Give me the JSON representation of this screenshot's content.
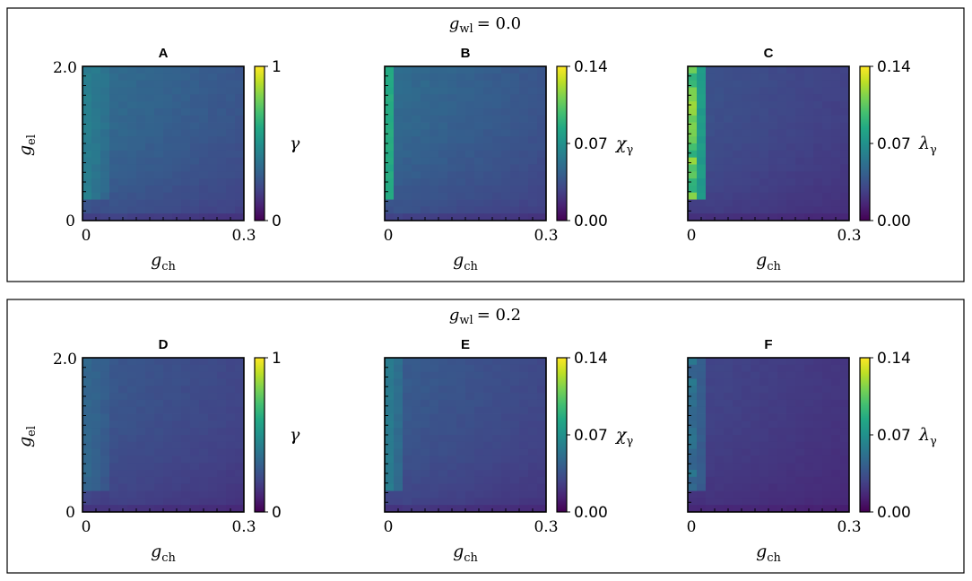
{
  "colors": {
    "viridis": [
      "#440154",
      "#482475",
      "#414487",
      "#355f8d",
      "#2a788e",
      "#21918c",
      "#22a884",
      "#44bf70",
      "#7ad151",
      "#bddf26",
      "#fde725"
    ],
    "frame": "#000000",
    "background": "#ffffff"
  },
  "chart_data": [
    {
      "group_title_var": "g",
      "group_title_sub": "wl",
      "group_title_value": "= 0.0",
      "panels": [
        {
          "letter": "A",
          "type": "heatmap",
          "metric": "gamma",
          "xlabel_var": "g",
          "xlabel_sub": "ch",
          "ylabel_var": "g",
          "ylabel_sub": "el",
          "xlim": [
            0,
            0.3
          ],
          "ylim": [
            0,
            2.0
          ],
          "xticks": [
            "0",
            "0.3"
          ],
          "yticks": [
            "0",
            "2.0"
          ],
          "colorbar": {
            "label": "γ",
            "label_sub": "",
            "min": 0,
            "max": 1,
            "ticks": [
              "0",
              "1"
            ]
          },
          "base_value": 0.32,
          "hot_value": 0.42,
          "hot_width_cols": 3
        },
        {
          "letter": "B",
          "type": "heatmap",
          "metric": "chi",
          "xlabel_var": "g",
          "xlabel_sub": "ch",
          "ylabel_var": "",
          "ylabel_sub": "",
          "xlim": [
            0,
            0.3
          ],
          "ylim": [
            0,
            2.0
          ],
          "xticks": [
            "0",
            "0.3"
          ],
          "yticks": [],
          "colorbar": {
            "label": "χ",
            "label_sub": "γ",
            "min": 0.0,
            "max": 0.14,
            "ticks": [
              "0.00",
              "0.07",
              "0.14"
            ]
          },
          "base_value": 0.044,
          "hot_value": 0.085,
          "hot_width_cols": 1
        },
        {
          "letter": "C",
          "type": "heatmap",
          "metric": "lambda",
          "xlabel_var": "g",
          "xlabel_sub": "ch",
          "ylabel_var": "",
          "ylabel_sub": "",
          "xlim": [
            0,
            0.3
          ],
          "ylim": [
            0,
            2.0
          ],
          "xticks": [
            "0",
            "0.3"
          ],
          "yticks": [],
          "colorbar": {
            "label": "λ",
            "label_sub": "γ",
            "min": 0.0,
            "max": 0.14,
            "ticks": [
              "0.00",
              "0.07",
              "0.14"
            ]
          },
          "base_value": 0.032,
          "hot_value": 0.105,
          "hot_width_cols": 2
        }
      ]
    },
    {
      "group_title_var": "g",
      "group_title_sub": "wl",
      "group_title_value": "= 0.2",
      "panels": [
        {
          "letter": "D",
          "type": "heatmap",
          "metric": "gamma",
          "xlabel_var": "g",
          "xlabel_sub": "ch",
          "ylabel_var": "g",
          "ylabel_sub": "el",
          "xlim": [
            0,
            0.3
          ],
          "ylim": [
            0,
            2.0
          ],
          "xticks": [
            "0",
            "0.3"
          ],
          "yticks": [
            "0",
            "2.0"
          ],
          "colorbar": {
            "label": "γ",
            "label_sub": "",
            "min": 0,
            "max": 1,
            "ticks": [
              "0",
              "1"
            ]
          },
          "base_value": 0.25,
          "hot_value": 0.33,
          "hot_width_cols": 3
        },
        {
          "letter": "E",
          "type": "heatmap",
          "metric": "chi",
          "xlabel_var": "g",
          "xlabel_sub": "ch",
          "ylabel_var": "",
          "ylabel_sub": "",
          "xlim": [
            0,
            0.3
          ],
          "ylim": [
            0,
            2.0
          ],
          "xticks": [
            "0",
            "0.3"
          ],
          "yticks": [],
          "colorbar": {
            "label": "χ",
            "label_sub": "γ",
            "min": 0.0,
            "max": 0.14,
            "ticks": [
              "0.00",
              "0.07",
              "0.14"
            ]
          },
          "base_value": 0.036,
          "hot_value": 0.058,
          "hot_width_cols": 2
        },
        {
          "letter": "F",
          "type": "heatmap",
          "metric": "lambda",
          "xlabel_var": "g",
          "xlabel_sub": "ch",
          "ylabel_var": "",
          "ylabel_sub": "",
          "xlim": [
            0,
            0.3
          ],
          "ylim": [
            0,
            2.0
          ],
          "xticks": [
            "0",
            "0.3"
          ],
          "yticks": [],
          "colorbar": {
            "label": "λ",
            "label_sub": "γ",
            "min": 0.0,
            "max": 0.14,
            "ticks": [
              "0.00",
              "0.07",
              "0.14"
            ]
          },
          "base_value": 0.026,
          "hot_value": 0.05,
          "hot_width_cols": 2
        }
      ]
    }
  ]
}
